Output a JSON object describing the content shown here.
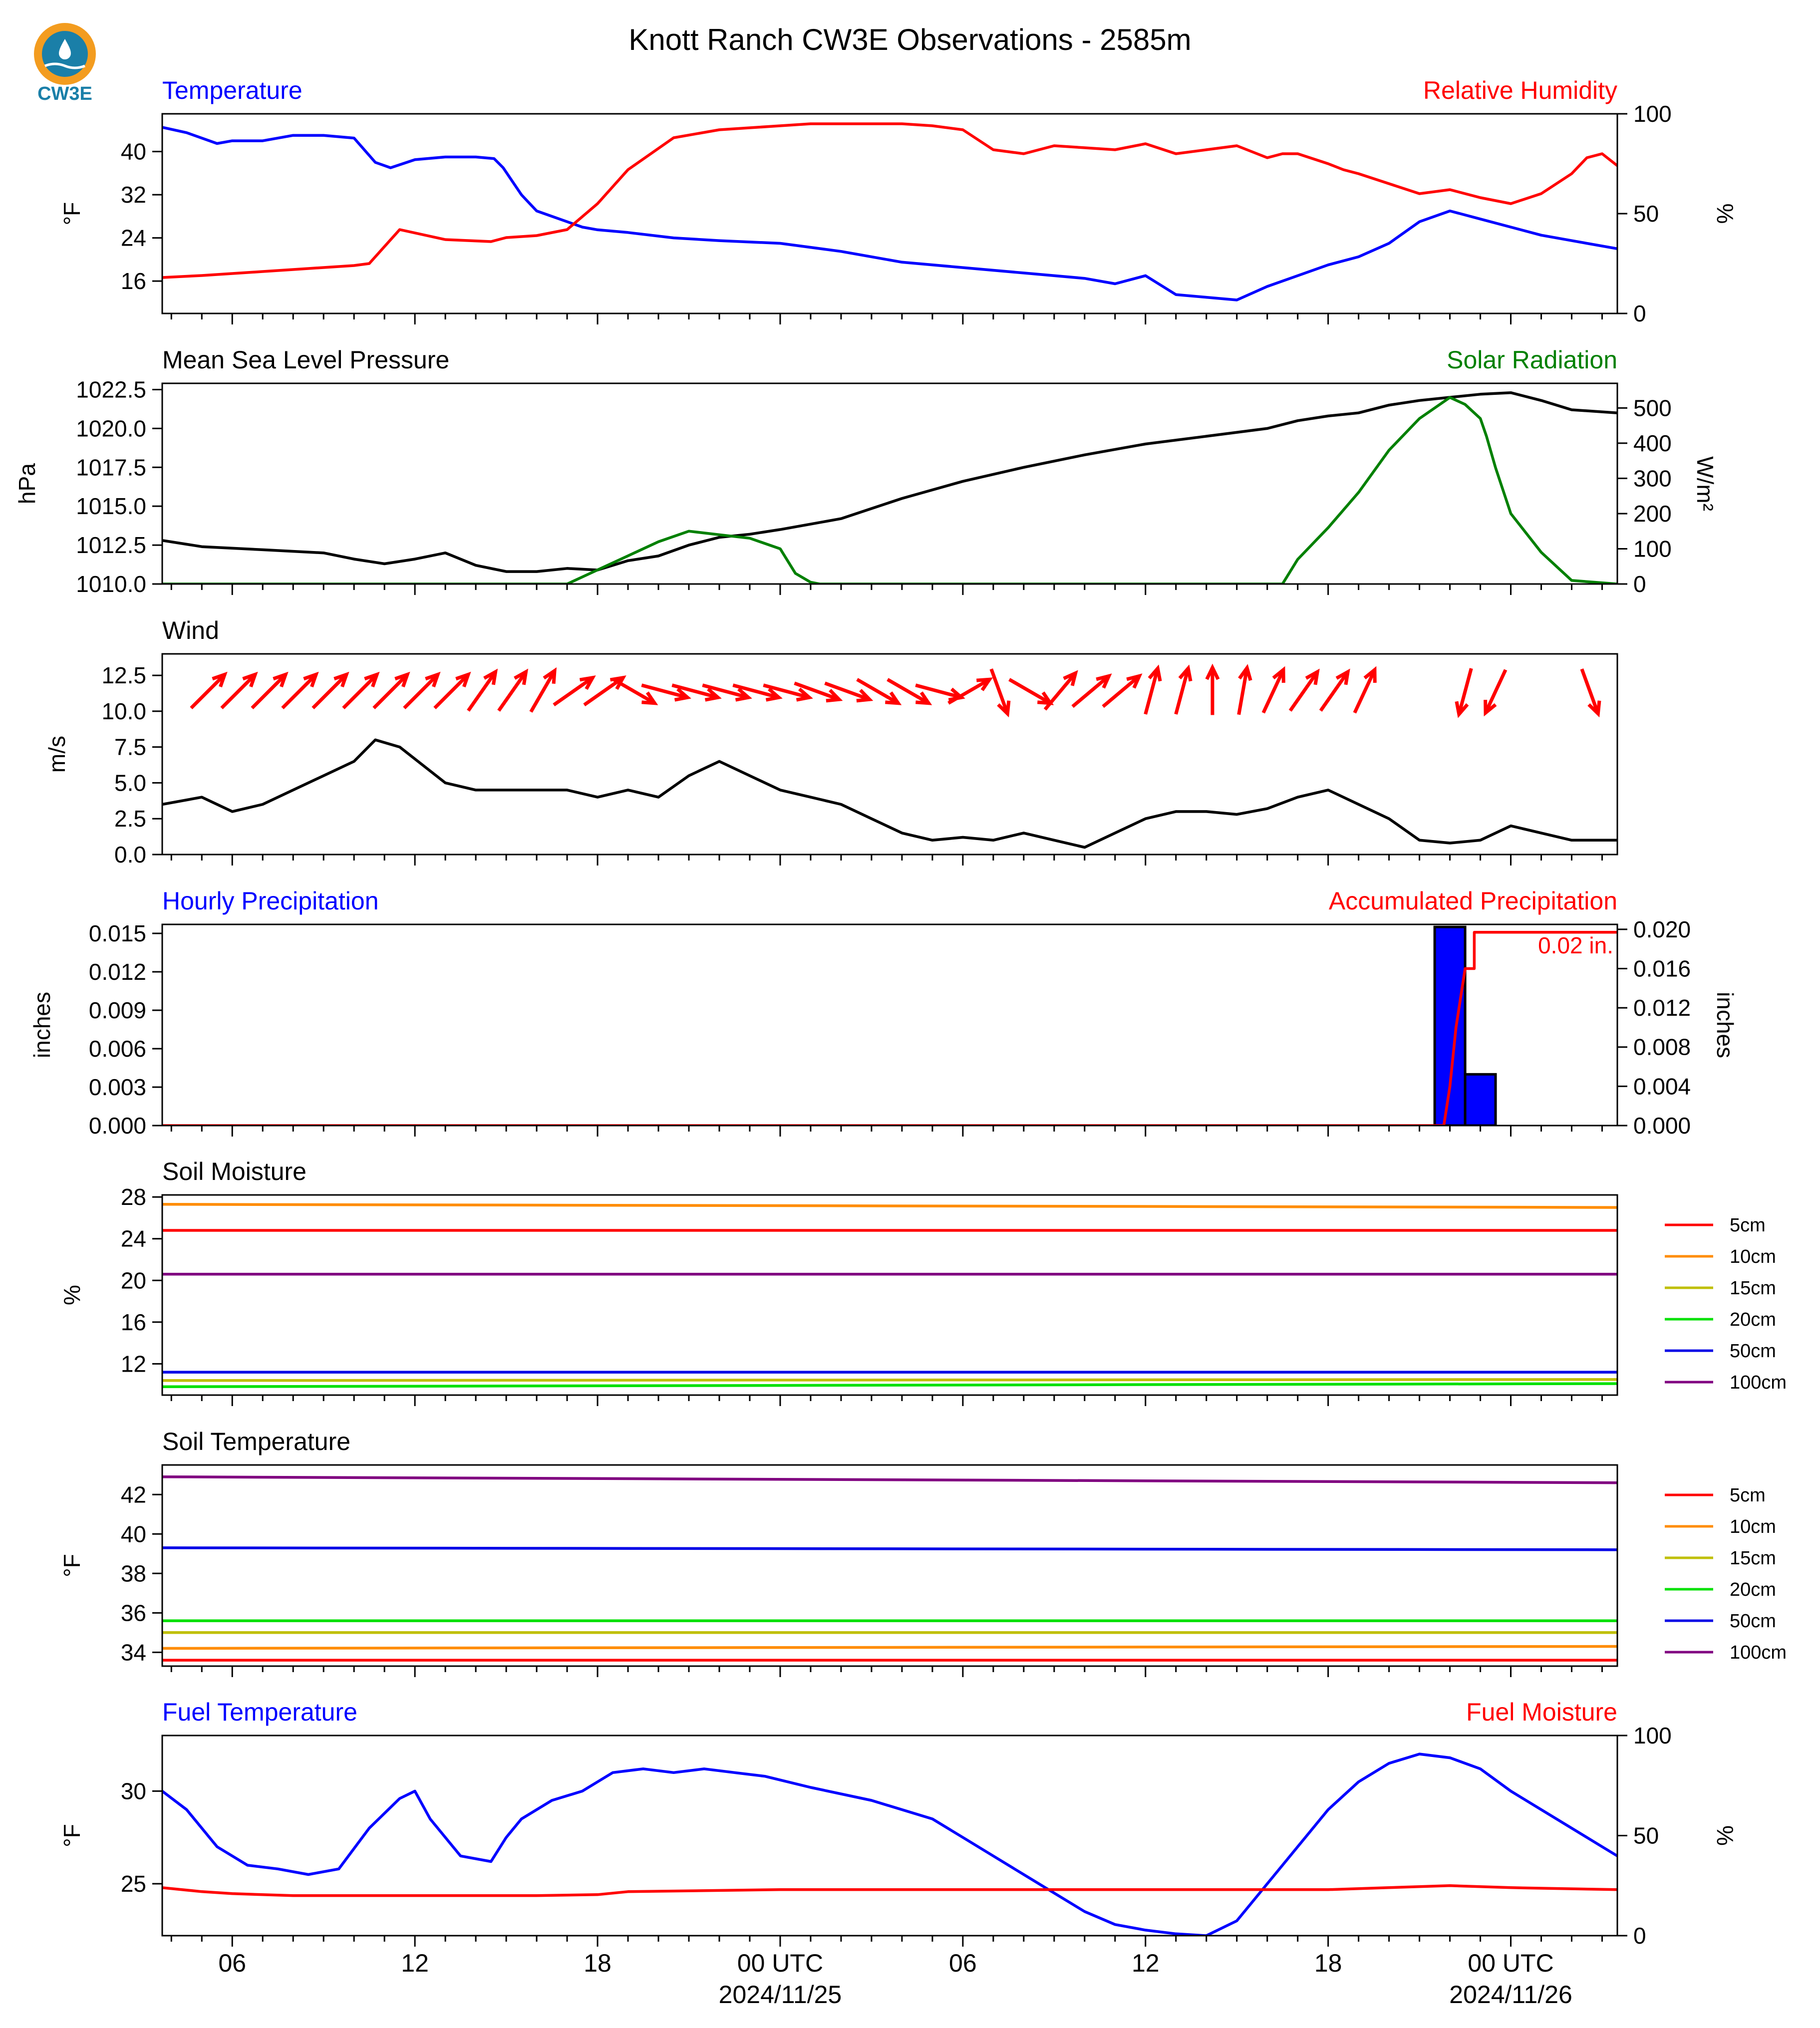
{
  "title": "Knott Ranch CW3E Observations - 2585m",
  "logo_text": "CW3E",
  "colors": {
    "blue": "#0000ff",
    "red": "#ff0000",
    "green": "#008000",
    "black": "#000000",
    "soil": [
      "#ff0000",
      "#ff8c00",
      "#bfbf00",
      "#00e000",
      "#0000e6",
      "#800080"
    ],
    "logo_orange": "#f39c1f",
    "logo_teal": "#1a7fa8"
  },
  "x_axis": {
    "range_hours": [
      -20.3,
      27.5
    ],
    "ticks": [
      {
        "h": -18,
        "label": ""
      },
      {
        "h": -12,
        "label": ""
      },
      {
        "h": -6,
        "label": ""
      },
      {
        "h": 0,
        "label": ""
      },
      {
        "h": 6,
        "label": ""
      },
      {
        "h": 12,
        "label": ""
      },
      {
        "h": 18,
        "label": ""
      },
      {
        "h": 24,
        "label": ""
      }
    ],
    "bottom_labels": [
      {
        "h": -18,
        "text": "06"
      },
      {
        "h": -12,
        "text": "12"
      },
      {
        "h": -6,
        "text": "18"
      },
      {
        "h": 0,
        "text": "00 UTC",
        "sub": "2024/11/25"
      },
      {
        "h": 6,
        "text": "06"
      },
      {
        "h": 12,
        "text": "12"
      },
      {
        "h": 18,
        "text": "18"
      },
      {
        "h": 24,
        "text": "00 UTC",
        "sub": "2024/11/26"
      }
    ]
  },
  "chart_data": [
    {
      "type": "line",
      "left_title": "Temperature",
      "right_title": "Relative Humidity",
      "ylabel": "°F",
      "y2label": "%",
      "ylim": [
        10,
        47
      ],
      "yticks": [
        16,
        24,
        32,
        40
      ],
      "y2lim": [
        0,
        100
      ],
      "y2ticks": [
        0,
        50,
        100
      ],
      "series": [
        {
          "name": "Temperature",
          "axis": "left",
          "x": [
            -20.3,
            -19.5,
            -18.5,
            -18,
            -17,
            -16,
            -15,
            -14,
            -13.3,
            -12.8,
            -12,
            -11,
            -10,
            -9.4,
            -9.1,
            -8.5,
            -8,
            -7,
            -6.5,
            -6,
            -5,
            -3.5,
            -2,
            0,
            2,
            4,
            6,
            8,
            10,
            11,
            12,
            13,
            14,
            15,
            16,
            17,
            18,
            19,
            20,
            21,
            22,
            23,
            24,
            25,
            26,
            27.5
          ],
          "y": [
            44.5,
            43.5,
            41.5,
            42,
            42,
            43,
            43,
            42.5,
            38,
            37,
            38.5,
            39,
            39,
            38.7,
            37,
            32,
            29,
            27,
            26,
            25.5,
            25,
            24,
            23.5,
            23,
            21.5,
            19.5,
            18.5,
            17.5,
            16.5,
            15.5,
            17,
            13.5,
            13,
            12.5,
            15,
            17,
            19,
            20.5,
            23,
            27,
            29,
            27.5,
            26,
            24.5,
            23.5,
            22
          ]
        },
        {
          "name": "Relative Humidity",
          "axis": "right",
          "x": [
            -20.3,
            -19,
            -18,
            -17,
            -16,
            -15,
            -14,
            -13.5,
            -12.5,
            -11,
            -9.5,
            -9,
            -8,
            -7,
            -6,
            -5,
            -3.5,
            -2,
            0,
            1,
            2,
            3,
            4,
            5,
            6,
            7,
            8,
            9,
            10,
            11,
            12,
            13,
            14,
            15,
            16,
            16.5,
            17,
            18,
            18.5,
            19,
            20,
            21,
            22,
            23,
            24,
            25,
            26,
            26.5,
            27,
            27.5
          ],
          "y": [
            18,
            19,
            20,
            21,
            22,
            23,
            24,
            25,
            42,
            37,
            36,
            38,
            39,
            42,
            55,
            72,
            88,
            92,
            94,
            95,
            95,
            95,
            95,
            94,
            92,
            82,
            80,
            84,
            83,
            82,
            85,
            80,
            82,
            84,
            78,
            80,
            80,
            75,
            72,
            70,
            65,
            60,
            62,
            58,
            55,
            60,
            70,
            78,
            80,
            74
          ]
        }
      ]
    },
    {
      "type": "line",
      "left_title": "Mean Sea Level Pressure",
      "right_title": "Solar Radiation",
      "ylabel": "hPa",
      "y2label": "W/m²",
      "ylim": [
        1010,
        1022.9
      ],
      "yticks": [
        1010.0,
        1012.5,
        1015.0,
        1017.5,
        1020.0,
        1022.5
      ],
      "y2lim": [
        0,
        570
      ],
      "y2ticks": [
        0,
        100,
        200,
        300,
        400,
        500
      ],
      "series": [
        {
          "name": "Mean Sea Level Pressure",
          "axis": "left",
          "x": [
            -20.3,
            -19,
            -17,
            -15,
            -14,
            -13,
            -12,
            -11,
            -10,
            -9,
            -8,
            -7,
            -6,
            -5,
            -4,
            -3,
            -2,
            -1,
            0,
            2,
            4,
            6,
            8,
            10,
            12,
            14,
            16,
            17,
            18,
            19,
            20,
            21,
            22,
            23,
            24,
            25,
            26,
            27.5
          ],
          "y": [
            1012.8,
            1012.4,
            1012.2,
            1012.0,
            1011.6,
            1011.3,
            1011.6,
            1012.0,
            1011.2,
            1010.8,
            1010.8,
            1011.0,
            1010.9,
            1011.5,
            1011.8,
            1012.5,
            1013.0,
            1013.2,
            1013.5,
            1014.2,
            1015.5,
            1016.6,
            1017.5,
            1018.3,
            1019.0,
            1019.5,
            1020.0,
            1020.5,
            1020.8,
            1021.0,
            1021.5,
            1021.8,
            1022.0,
            1022.2,
            1022.3,
            1021.8,
            1021.2,
            1021.0
          ]
        },
        {
          "name": "Solar Radiation",
          "axis": "right",
          "x": [
            -20.3,
            -7.5,
            -7,
            -6,
            -5,
            -4,
            -3,
            -2,
            -1,
            0,
            0.5,
            1,
            1.3,
            16,
            16.5,
            17,
            18,
            19,
            20,
            21,
            21.5,
            22,
            22.5,
            23,
            23.2,
            23.5,
            24,
            25,
            26,
            27.5
          ],
          "y": [
            0,
            0,
            0,
            40,
            80,
            120,
            150,
            140,
            130,
            100,
            30,
            5,
            0,
            0,
            0,
            70,
            160,
            260,
            380,
            470,
            500,
            530,
            510,
            470,
            420,
            330,
            200,
            90,
            10,
            0
          ]
        }
      ]
    },
    {
      "type": "line",
      "left_title": "Wind",
      "ylabel": "m/s",
      "ylim": [
        0,
        14
      ],
      "yticks": [
        0.0,
        2.5,
        5.0,
        7.5,
        10.0,
        12.5
      ],
      "series": [
        {
          "name": "Wind",
          "axis": "left",
          "x": [
            -20.3,
            -19,
            -18,
            -17,
            -16,
            -15,
            -14,
            -13.3,
            -12.5,
            -11,
            -10,
            -9,
            -8,
            -7,
            -6,
            -5,
            -4,
            -3,
            -2,
            -1,
            0,
            1,
            2,
            3,
            4,
            5,
            6,
            7,
            8,
            9,
            10,
            11,
            12,
            13,
            14,
            15,
            16,
            17,
            18,
            19,
            20,
            21,
            22,
            23,
            24,
            25,
            26,
            27.5
          ],
          "y": [
            3.5,
            4,
            3.0,
            3.5,
            4.5,
            5.5,
            6.5,
            8,
            7.5,
            5,
            4.5,
            4.5,
            4.5,
            4.5,
            4.0,
            4.5,
            4.0,
            5.5,
            6.5,
            5.5,
            4.5,
            4.0,
            3.5,
            2.5,
            1.5,
            1.0,
            1.2,
            1.0,
            1.5,
            1.0,
            0.5,
            1.5,
            2.5,
            3.0,
            3.0,
            2.8,
            3.2,
            4.0,
            4.5,
            3.5,
            2.5,
            1.0,
            0.8,
            1.0,
            2.0,
            1.5,
            1.0,
            1.0
          ]
        },
        {
          "name": "Wind Direction",
          "axis": "arrows",
          "x": [
            -18.8,
            -17.8,
            -16.8,
            -15.8,
            -14.8,
            -13.8,
            -12.8,
            -11.8,
            -10.8,
            -9.8,
            -8.8,
            -7.8,
            -6.8,
            -5.8,
            -4.8,
            -3.8,
            -2.8,
            -1.8,
            -0.8,
            0.2,
            1.2,
            2.2,
            3.2,
            4.2,
            5.2,
            6.2,
            7.2,
            8.2,
            9.2,
            10.2,
            11.2,
            12.2,
            13.2,
            14.2,
            15.2,
            16.2,
            17.2,
            18.2,
            19.2,
            22.5,
            23.5,
            26.6
          ],
          "y": [
            225,
            225,
            225,
            225,
            225,
            225,
            225,
            225,
            225,
            215,
            215,
            210,
            235,
            235,
            300,
            285,
            285,
            285,
            285,
            285,
            290,
            290,
            300,
            300,
            285,
            240,
            340,
            300,
            220,
            230,
            230,
            195,
            195,
            180,
            190,
            205,
            215,
            215,
            205,
            15,
            25,
            340
          ]
        }
      ]
    },
    {
      "type": "bar",
      "left_title": "Hourly Precipitation",
      "right_title": "Accumulated Precipitation",
      "ylabel": "inches",
      "y2label": "inches",
      "ylim": [
        0,
        0.0157
      ],
      "yticks": [
        0.0,
        0.003,
        0.006,
        0.009,
        0.012,
        0.015
      ],
      "y2lim": [
        0,
        0.0205
      ],
      "y2ticks": [
        0.0,
        0.004,
        0.008,
        0.012,
        0.016,
        0.02
      ],
      "annotation": "0.02 in.",
      "series": [
        {
          "name": "Hourly Precipitation",
          "axis": "left",
          "bars": [
            {
              "x0": 21.5,
              "x1": 22.5,
              "y": 0.0155
            },
            {
              "x0": 22.5,
              "x1": 23.5,
              "y": 0.004
            }
          ]
        },
        {
          "name": "Accumulated Precipitation",
          "axis": "right",
          "x": [
            -20.3,
            21.8,
            22.0,
            22.2,
            22.4,
            22.5,
            22.8,
            22.8,
            27.5
          ],
          "y": [
            0,
            0,
            0.004,
            0.01,
            0.014,
            0.016,
            0.016,
            0.0197,
            0.0197
          ]
        }
      ]
    },
    {
      "type": "line",
      "left_title": "Soil Moisture",
      "ylabel": "%",
      "ylim": [
        9,
        28.2
      ],
      "yticks": [
        12,
        16,
        20,
        24,
        28
      ],
      "legend": [
        "5cm",
        "10cm",
        "15cm",
        "20cm",
        "50cm",
        "100cm"
      ],
      "series": [
        {
          "name": "5cm",
          "x": [
            -20.3,
            27.5
          ],
          "y": [
            24.8,
            24.8
          ]
        },
        {
          "name": "10cm",
          "x": [
            -20.3,
            27.5
          ],
          "y": [
            27.3,
            27.0
          ]
        },
        {
          "name": "15cm",
          "x": [
            -20.3,
            27.5
          ],
          "y": [
            10.4,
            10.5
          ]
        },
        {
          "name": "20cm",
          "x": [
            -20.3,
            27.5
          ],
          "y": [
            9.8,
            10.1
          ]
        },
        {
          "name": "50cm",
          "x": [
            -20.3,
            27.5
          ],
          "y": [
            11.2,
            11.2
          ]
        },
        {
          "name": "100cm",
          "x": [
            -20.3,
            27.5
          ],
          "y": [
            20.6,
            20.6
          ]
        }
      ]
    },
    {
      "type": "line",
      "left_title": "Soil Temperature",
      "ylabel": "°F",
      "ylim": [
        33.3,
        43.5
      ],
      "yticks": [
        34,
        36,
        38,
        40,
        42
      ],
      "legend": [
        "5cm",
        "10cm",
        "15cm",
        "20cm",
        "50cm",
        "100cm"
      ],
      "series": [
        {
          "name": "5cm",
          "x": [
            -20.3,
            27.5
          ],
          "y": [
            33.6,
            33.6
          ]
        },
        {
          "name": "10cm",
          "x": [
            -20.3,
            27.5
          ],
          "y": [
            34.2,
            34.3
          ]
        },
        {
          "name": "15cm",
          "x": [
            -20.3,
            27.5
          ],
          "y": [
            35.0,
            35.0
          ]
        },
        {
          "name": "20cm",
          "x": [
            -20.3,
            27.5
          ],
          "y": [
            35.6,
            35.6
          ]
        },
        {
          "name": "50cm",
          "x": [
            -20.3,
            27.5
          ],
          "y": [
            39.3,
            39.2
          ]
        },
        {
          "name": "100cm",
          "x": [
            -20.3,
            27.5
          ],
          "y": [
            42.9,
            42.6
          ]
        }
      ]
    },
    {
      "type": "line",
      "left_title": "Fuel Temperature",
      "right_title": "Fuel Moisture",
      "ylabel": "°F",
      "y2label": "%",
      "ylim": [
        22.2,
        33
      ],
      "yticks": [
        25,
        30
      ],
      "y2lim": [
        0,
        100
      ],
      "y2ticks": [
        0,
        50,
        100
      ],
      "series": [
        {
          "name": "Fuel Temperature",
          "axis": "left",
          "x": [
            -20.3,
            -19.5,
            -18.5,
            -17.5,
            -16.5,
            -15.5,
            -14.5,
            -13.5,
            -12.5,
            -12,
            -11.5,
            -10.5,
            -9.5,
            -9,
            -8.5,
            -7.5,
            -6.5,
            -6,
            -5.5,
            -4.5,
            -3.5,
            -2.5,
            -1.5,
            -0.5,
            1,
            3,
            5,
            6,
            7,
            8,
            9,
            10,
            11,
            12,
            13,
            14,
            15,
            16,
            17,
            18,
            19,
            20,
            21,
            22,
            23,
            24,
            25,
            26,
            27,
            27.5
          ],
          "y": [
            30.0,
            29.0,
            27.0,
            26.0,
            25.8,
            25.5,
            25.8,
            28.0,
            29.6,
            30.0,
            28.5,
            26.5,
            26.2,
            27.5,
            28.5,
            29.5,
            30.0,
            30.5,
            31.0,
            31.2,
            31.0,
            31.2,
            31.0,
            30.8,
            30.2,
            29.5,
            28.5,
            27.5,
            26.5,
            25.5,
            24.5,
            23.5,
            22.8,
            22.5,
            22.3,
            22.2,
            23.0,
            25.0,
            27.0,
            29.0,
            30.5,
            31.5,
            32.0,
            31.8,
            31.2,
            30.0,
            29.0,
            28.0,
            27.0,
            26.5
          ]
        },
        {
          "name": "Fuel Moisture",
          "axis": "right",
          "x": [
            -20.3,
            -19,
            -18,
            -16,
            -12,
            -8,
            -6,
            -5,
            0,
            6,
            12,
            18,
            20,
            22,
            24,
            27.5
          ],
          "y": [
            24,
            22,
            21,
            20,
            20,
            20,
            20.5,
            22,
            23,
            23,
            23,
            23,
            24,
            25,
            24,
            23
          ]
        }
      ]
    }
  ]
}
